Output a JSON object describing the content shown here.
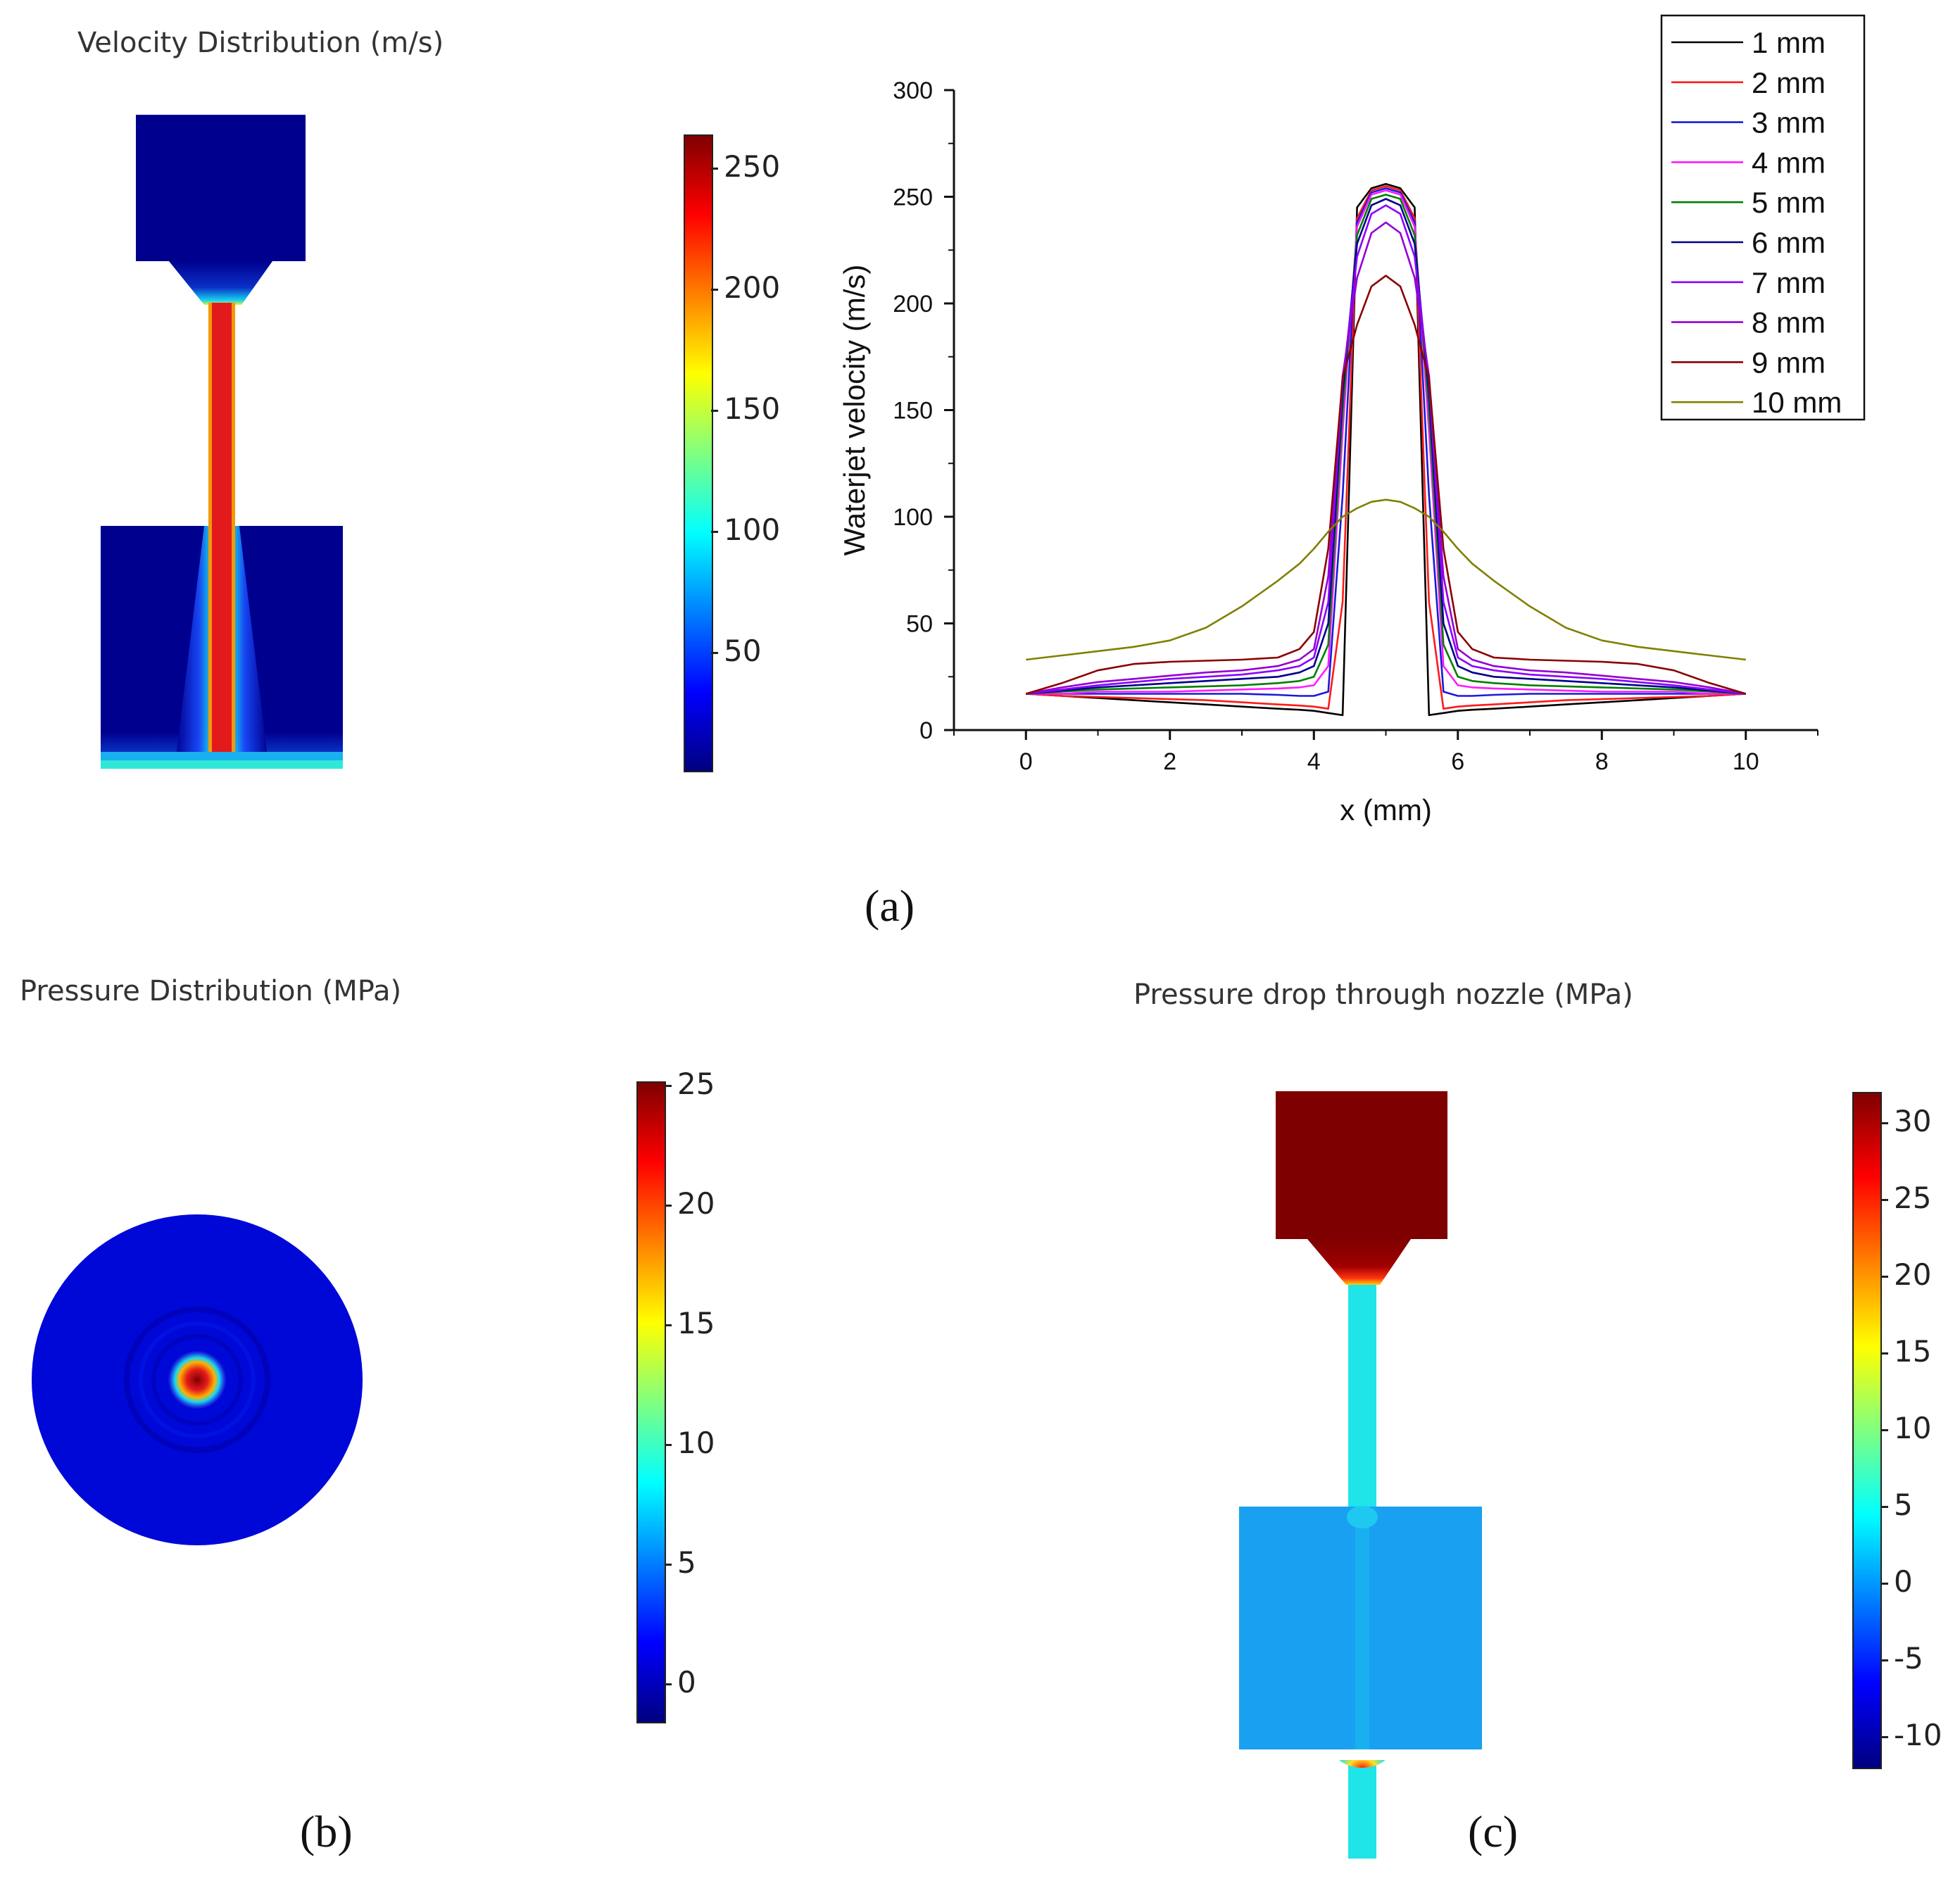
{
  "panel_a": {
    "title": "Velocity Distribution (m/s)",
    "colorbar_ticks": [
      "250",
      "200",
      "150",
      "100",
      "50"
    ],
    "caption": "(a)"
  },
  "panel_b": {
    "title": "Pressure Distribution (MPa)",
    "colorbar_ticks": [
      "25",
      "20",
      "15",
      "10",
      "5",
      "0"
    ],
    "caption": "(b)"
  },
  "panel_c": {
    "title": "Pressure drop through nozzle (MPa)",
    "colorbar_ticks": [
      "30",
      "25",
      "20",
      "15",
      "10",
      "5",
      "0",
      "-5",
      "-10"
    ],
    "caption": "(c)"
  },
  "colors": {
    "jet_dark_blue": "#00008f",
    "jet_red": "#e31a1c",
    "jet_dark_red": "#7f0000",
    "jet_cyan": "#1fe4e8",
    "jet_mid_blue": "#1aa0f0"
  },
  "chart_data": {
    "type": "line",
    "title": "",
    "xlabel": "x (mm)",
    "ylabel": "Waterjet velocity (m/s)",
    "xlim": [
      -1,
      11.0
    ],
    "ylim": [
      0,
      300
    ],
    "xticks": [
      0,
      2,
      4,
      6,
      8,
      10
    ],
    "yticks": [
      0,
      50,
      100,
      150,
      200,
      250,
      300
    ],
    "legend_position": "top-right",
    "x": [
      0,
      0.5,
      1,
      1.5,
      2,
      2.5,
      3,
      3.5,
      3.8,
      4.0,
      4.2,
      4.4,
      4.6,
      4.8,
      5.0,
      5.2,
      5.4,
      5.6,
      5.8,
      6.0,
      6.2,
      6.5,
      7,
      7.5,
      8,
      8.5,
      9,
      9.5,
      10
    ],
    "series": [
      {
        "name": "1 mm",
        "color": "#000000",
        "values": [
          17,
          16,
          15,
          14,
          13,
          12,
          11,
          10,
          9.5,
          9,
          8,
          7,
          245,
          254,
          256,
          254,
          245,
          7,
          8,
          9,
          9.5,
          10,
          11,
          12,
          13,
          14,
          15,
          16,
          17
        ]
      },
      {
        "name": "2 mm",
        "color": "#ff1a1a",
        "values": [
          17,
          16,
          15.5,
          15,
          14.5,
          14,
          13,
          12,
          11.5,
          11,
          10,
          60,
          240,
          253,
          255,
          253,
          240,
          60,
          10,
          11,
          11.5,
          12,
          13,
          14,
          14.5,
          15,
          15.5,
          16,
          17
        ]
      },
      {
        "name": "3 mm",
        "color": "#1a1ad9",
        "values": [
          17,
          17,
          17,
          17,
          17,
          17,
          17,
          16.5,
          16,
          16,
          18,
          110,
          238,
          252,
          254,
          252,
          238,
          110,
          18,
          16,
          16,
          16.5,
          17,
          17,
          17,
          17,
          17,
          17,
          17
        ]
      },
      {
        "name": "4 mm",
        "color": "#ff1aff",
        "values": [
          17,
          17,
          18,
          18,
          18,
          18.5,
          19,
          19.5,
          20,
          21,
          30,
          140,
          236,
          251,
          253,
          251,
          236,
          140,
          30,
          21,
          20,
          19.5,
          19,
          18.5,
          18,
          18,
          18,
          17,
          17
        ]
      },
      {
        "name": "5 mm",
        "color": "#008000",
        "values": [
          17,
          18,
          19,
          19.5,
          20,
          20.5,
          21,
          22,
          23,
          25,
          40,
          150,
          232,
          249,
          251,
          249,
          232,
          150,
          40,
          25,
          23,
          22,
          21,
          20.5,
          20,
          19.5,
          19,
          18,
          17
        ]
      },
      {
        "name": "6 mm",
        "color": "#00008b",
        "values": [
          17,
          18.5,
          20,
          21,
          22,
          23,
          24,
          25,
          27,
          30,
          50,
          158,
          228,
          246,
          249,
          246,
          228,
          158,
          50,
          30,
          27,
          25,
          24,
          23,
          22,
          21,
          20,
          18.5,
          17
        ]
      },
      {
        "name": "7 mm",
        "color": "#8b00ff",
        "values": [
          17,
          19,
          21,
          22.5,
          24,
          25,
          26,
          28,
          30,
          34,
          60,
          163,
          222,
          242,
          246,
          242,
          222,
          163,
          60,
          34,
          30,
          28,
          26,
          25,
          24,
          22.5,
          21,
          19,
          17
        ]
      },
      {
        "name": "8 mm",
        "color": "#9400d3",
        "values": [
          17,
          20,
          22.5,
          24,
          25.5,
          27,
          28,
          30,
          33,
          38,
          72,
          166,
          212,
          233,
          238,
          233,
          212,
          166,
          72,
          38,
          33,
          30,
          28,
          27,
          25.5,
          24,
          22.5,
          20,
          17
        ]
      },
      {
        "name": "9 mm",
        "color": "#8b0000",
        "values": [
          17,
          22,
          28,
          31,
          32,
          32.5,
          33,
          34,
          38,
          46,
          85,
          165,
          190,
          208,
          213,
          208,
          190,
          165,
          85,
          46,
          38,
          34,
          33,
          32.5,
          32,
          31,
          28,
          22,
          17
        ]
      },
      {
        "name": "10 mm",
        "color": "#808000",
        "values": [
          33,
          35,
          37,
          39,
          42,
          48,
          58,
          70,
          78,
          85,
          93,
          100,
          104,
          107,
          108,
          107,
          104,
          100,
          93,
          85,
          78,
          70,
          58,
          48,
          42,
          39,
          37,
          35,
          33
        ]
      }
    ]
  }
}
